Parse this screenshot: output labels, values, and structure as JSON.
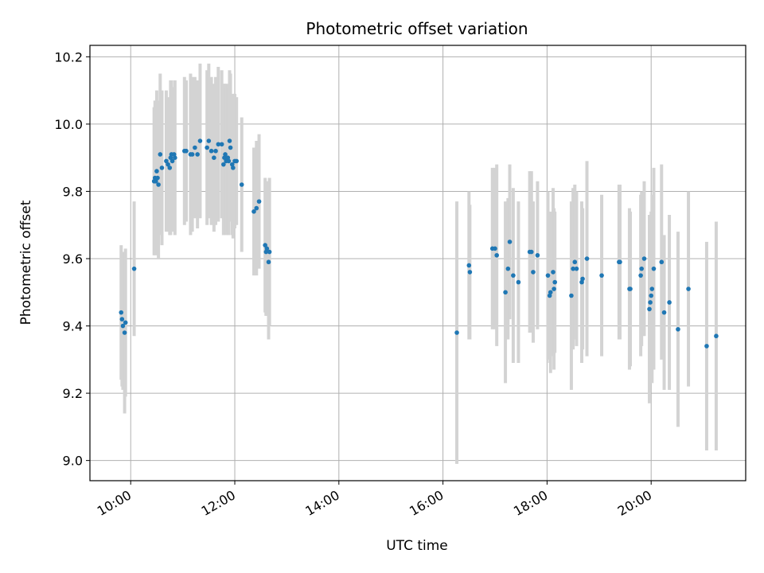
{
  "chart_data": {
    "type": "scatter",
    "title": "Photometric offset variation",
    "xlabel": "UTC time",
    "ylabel": "Photometric offset",
    "xlim": [
      "09:13",
      "21:49"
    ],
    "ylim": [
      8.94,
      10.234
    ],
    "grid": true,
    "x_ticks": [
      "10:00",
      "12:00",
      "14:00",
      "16:00",
      "18:00",
      "20:00"
    ],
    "y_ticks": [
      "9.0",
      "9.2",
      "9.4",
      "9.6",
      "9.8",
      "10.0",
      "10.2"
    ],
    "colors": {
      "point": "#1f77b4",
      "errorbar": "#d3d3d3",
      "grid": "#b0b0b0"
    },
    "series": [
      {
        "points": [
          {
            "x": "09:49",
            "y": 9.44,
            "err": 0.2
          },
          {
            "x": "09:50",
            "y": 9.42,
            "err": 0.2
          },
          {
            "x": "09:51",
            "y": 9.4,
            "err": 0.19
          },
          {
            "x": "09:53",
            "y": 9.38,
            "err": 0.24
          },
          {
            "x": "09:54",
            "y": 9.41,
            "err": 0.22
          },
          {
            "x": "10:04",
            "y": 9.57,
            "err": 0.2
          },
          {
            "x": "10:27",
            "y": 9.83,
            "err": 0.22
          },
          {
            "x": "10:28",
            "y": 9.84,
            "err": 0.23
          },
          {
            "x": "10:29",
            "y": 9.83,
            "err": 0.21
          },
          {
            "x": "10:30",
            "y": 9.86,
            "err": 0.24
          },
          {
            "x": "10:31",
            "y": 9.84,
            "err": 0.23
          },
          {
            "x": "10:32",
            "y": 9.82,
            "err": 0.22
          },
          {
            "x": "10:34",
            "y": 9.91,
            "err": 0.24
          },
          {
            "x": "10:36",
            "y": 9.87,
            "err": 0.23
          },
          {
            "x": "10:41",
            "y": 9.89,
            "err": 0.21
          },
          {
            "x": "10:43",
            "y": 9.88,
            "err": 0.2
          },
          {
            "x": "10:45",
            "y": 9.87,
            "err": 0.2
          },
          {
            "x": "10:46",
            "y": 9.9,
            "err": 0.23
          },
          {
            "x": "10:47",
            "y": 9.91,
            "err": 0.22
          },
          {
            "x": "10:48",
            "y": 9.89,
            "err": 0.21
          },
          {
            "x": "10:50",
            "y": 9.91,
            "err": 0.2
          },
          {
            "x": "10:51",
            "y": 9.9,
            "err": 0.23
          },
          {
            "x": "11:02",
            "y": 9.92,
            "err": 0.22
          },
          {
            "x": "11:04",
            "y": 9.92,
            "err": 0.21
          },
          {
            "x": "11:09",
            "y": 9.91,
            "err": 0.24
          },
          {
            "x": "11:11",
            "y": 9.91,
            "err": 0.23
          },
          {
            "x": "11:14",
            "y": 9.93,
            "err": 0.21
          },
          {
            "x": "11:17",
            "y": 9.91,
            "err": 0.22
          },
          {
            "x": "11:20",
            "y": 9.95,
            "err": 0.23
          },
          {
            "x": "11:28",
            "y": 9.93,
            "err": 0.23
          },
          {
            "x": "11:30",
            "y": 9.95,
            "err": 0.23
          },
          {
            "x": "11:33",
            "y": 9.92,
            "err": 0.22
          },
          {
            "x": "11:36",
            "y": 9.9,
            "err": 0.22
          },
          {
            "x": "11:38",
            "y": 9.92,
            "err": 0.22
          },
          {
            "x": "11:41",
            "y": 9.94,
            "err": 0.23
          },
          {
            "x": "11:45",
            "y": 9.94,
            "err": 0.22
          },
          {
            "x": "11:47",
            "y": 9.88,
            "err": 0.21
          },
          {
            "x": "11:48",
            "y": 9.9,
            "err": 0.22
          },
          {
            "x": "11:49",
            "y": 9.91,
            "err": 0.21
          },
          {
            "x": "11:50",
            "y": 9.89,
            "err": 0.22
          },
          {
            "x": "11:52",
            "y": 9.9,
            "err": 0.22
          },
          {
            "x": "11:53",
            "y": 9.89,
            "err": 0.22
          },
          {
            "x": "11:54",
            "y": 9.95,
            "err": 0.21
          },
          {
            "x": "11:55",
            "y": 9.93,
            "err": 0.22
          },
          {
            "x": "11:57",
            "y": 9.88,
            "err": 0.21
          },
          {
            "x": "11:58",
            "y": 9.87,
            "err": 0.21
          },
          {
            "x": "12:00",
            "y": 9.89,
            "err": 0.2
          },
          {
            "x": "12:02",
            "y": 9.89,
            "err": 0.19
          },
          {
            "x": "12:08",
            "y": 9.82,
            "err": 0.2
          },
          {
            "x": "12:22",
            "y": 9.74,
            "err": 0.19
          },
          {
            "x": "12:25",
            "y": 9.75,
            "err": 0.2
          },
          {
            "x": "12:28",
            "y": 9.77,
            "err": 0.2
          },
          {
            "x": "12:35",
            "y": 9.64,
            "err": 0.2
          },
          {
            "x": "12:36",
            "y": 9.62,
            "err": 0.19
          },
          {
            "x": "12:37",
            "y": 9.63,
            "err": 0.2
          },
          {
            "x": "12:39",
            "y": 9.59,
            "err": 0.23
          },
          {
            "x": "12:40",
            "y": 9.62,
            "err": 0.22
          },
          {
            "x": "16:16",
            "y": 9.38,
            "err": 0.39
          },
          {
            "x": "16:30",
            "y": 9.58,
            "err": 0.22
          },
          {
            "x": "16:31",
            "y": 9.56,
            "err": 0.2
          },
          {
            "x": "16:57",
            "y": 9.63,
            "err": 0.24
          },
          {
            "x": "17:00",
            "y": 9.63,
            "err": 0.24
          },
          {
            "x": "17:02",
            "y": 9.61,
            "err": 0.27
          },
          {
            "x": "17:12",
            "y": 9.5,
            "err": 0.27
          },
          {
            "x": "17:15",
            "y": 9.57,
            "err": 0.21
          },
          {
            "x": "17:17",
            "y": 9.65,
            "err": 0.23
          },
          {
            "x": "17:21",
            "y": 9.55,
            "err": 0.26
          },
          {
            "x": "17:27",
            "y": 9.53,
            "err": 0.24
          },
          {
            "x": "17:40",
            "y": 9.62,
            "err": 0.24
          },
          {
            "x": "17:42",
            "y": 9.62,
            "err": 0.24
          },
          {
            "x": "17:44",
            "y": 9.56,
            "err": 0.21
          },
          {
            "x": "17:49",
            "y": 9.61,
            "err": 0.22
          },
          {
            "x": "18:01",
            "y": 9.55,
            "err": 0.25
          },
          {
            "x": "18:03",
            "y": 9.49,
            "err": 0.2
          },
          {
            "x": "18:04",
            "y": 9.5,
            "err": 0.24
          },
          {
            "x": "18:07",
            "y": 9.56,
            "err": 0.25
          },
          {
            "x": "18:08",
            "y": 9.51,
            "err": 0.24
          },
          {
            "x": "18:09",
            "y": 9.53,
            "err": 0.21
          },
          {
            "x": "18:28",
            "y": 9.49,
            "err": 0.28
          },
          {
            "x": "18:30",
            "y": 9.57,
            "err": 0.24
          },
          {
            "x": "18:32",
            "y": 9.59,
            "err": 0.23
          },
          {
            "x": "18:34",
            "y": 9.57,
            "err": 0.23
          },
          {
            "x": "18:40",
            "y": 9.53,
            "err": 0.24
          },
          {
            "x": "18:41",
            "y": 9.54,
            "err": 0.21
          },
          {
            "x": "18:46",
            "y": 9.6,
            "err": 0.29
          },
          {
            "x": "19:03",
            "y": 9.55,
            "err": 0.24
          },
          {
            "x": "19:23",
            "y": 9.59,
            "err": 0.23
          },
          {
            "x": "19:24",
            "y": 9.59,
            "err": 0.23
          },
          {
            "x": "19:35",
            "y": 9.51,
            "err": 0.24
          },
          {
            "x": "19:36",
            "y": 9.51,
            "err": 0.23
          },
          {
            "x": "19:48",
            "y": 9.55,
            "err": 0.24
          },
          {
            "x": "19:49",
            "y": 9.57,
            "err": 0.23
          },
          {
            "x": "19:52",
            "y": 9.6,
            "err": 0.23
          },
          {
            "x": "19:58",
            "y": 9.45,
            "err": 0.28
          },
          {
            "x": "19:59",
            "y": 9.47,
            "err": 0.24
          },
          {
            "x": "20:00",
            "y": 9.49,
            "err": 0.25
          },
          {
            "x": "20:01",
            "y": 9.51,
            "err": 0.28
          },
          {
            "x": "20:03",
            "y": 9.57,
            "err": 0.3
          },
          {
            "x": "20:12",
            "y": 9.59,
            "err": 0.29
          },
          {
            "x": "20:15",
            "y": 9.44,
            "err": 0.23
          },
          {
            "x": "20:21",
            "y": 9.47,
            "err": 0.26
          },
          {
            "x": "20:31",
            "y": 9.39,
            "err": 0.29
          },
          {
            "x": "20:43",
            "y": 9.51,
            "err": 0.29
          },
          {
            "x": "21:04",
            "y": 9.34,
            "err": 0.31
          },
          {
            "x": "21:15",
            "y": 9.37,
            "err": 0.34
          }
        ]
      }
    ]
  }
}
